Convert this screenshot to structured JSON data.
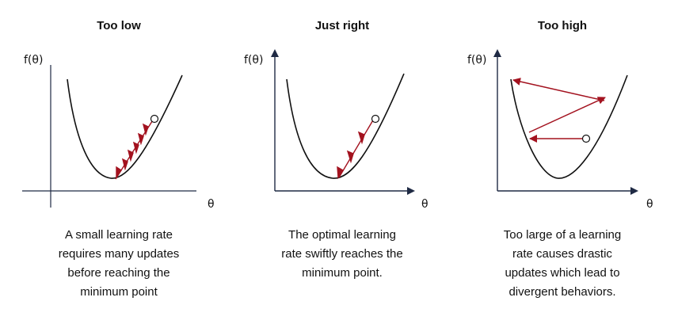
{
  "panels": [
    {
      "title": "Too low",
      "y_label": "f(θ)",
      "x_label": "θ",
      "caption_lines": [
        "A small learning rate",
        "requires many updates",
        "before reaching the",
        "minimum point"
      ]
    },
    {
      "title": "Just right",
      "y_label": "f(θ)",
      "x_label": "θ",
      "caption_lines": [
        "The optimal learning",
        "rate swiftly reaches the",
        "minimum point."
      ]
    },
    {
      "title": "Too high",
      "y_label": "f(θ)",
      "x_label": "θ",
      "caption_lines": [
        "Too large of a learning",
        "rate causes drastic",
        "updates which lead to",
        "divergent behaviors."
      ]
    }
  ],
  "colors": {
    "axis": "#1f2a44",
    "curve": "#111111",
    "arrow": "#a3121f",
    "point_fill": "#ffffff"
  }
}
